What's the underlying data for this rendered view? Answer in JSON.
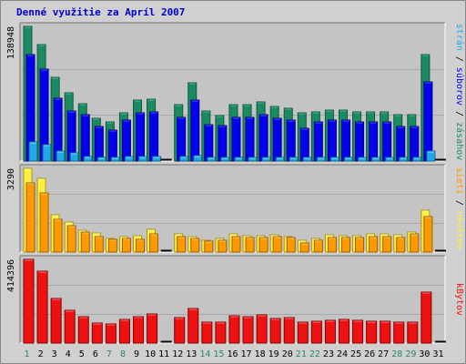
{
  "title": "Denné využitie za Apríl 2007",
  "colors": {
    "background": "#d0d0d0",
    "plot_bg": "#c4c4c4",
    "grid": "#a8a8a8",
    "title": "#0000cc",
    "hits": "#1a8a60",
    "files": "#0000ee",
    "pages": "#22a8e8",
    "visits": "#ffee44",
    "sites": "#ff9900",
    "kbytes": "#ee1111",
    "weekend_day": "#2a8a60",
    "weekday": "#000000"
  },
  "chart_data": [
    {
      "type": "bar",
      "panel": "requests",
      "x": [
        1,
        2,
        3,
        4,
        5,
        6,
        7,
        8,
        9,
        10,
        11,
        12,
        13,
        14,
        15,
        16,
        17,
        18,
        19,
        20,
        21,
        22,
        23,
        24,
        25,
        26,
        27,
        28,
        29,
        30,
        31
      ],
      "ymax_label": "138948",
      "ymax": 138948,
      "series": [
        {
          "name": "zásahov",
          "color": "#1a8a60",
          "values": [
            138948,
            120000,
            86000,
            70000,
            59000,
            44000,
            40000,
            50000,
            63000,
            64000,
            0,
            58000,
            81000,
            52000,
            47000,
            58000,
            58000,
            61000,
            56000,
            54000,
            50000,
            51000,
            53000,
            53000,
            51000,
            51000,
            51000,
            48000,
            48000,
            110000,
            0
          ]
        },
        {
          "name": "súborov",
          "color": "#0000ee",
          "values": [
            110000,
            95000,
            65000,
            52000,
            48000,
            36000,
            32000,
            42000,
            50000,
            51000,
            0,
            45000,
            63000,
            38000,
            37000,
            45000,
            45000,
            48000,
            44000,
            42000,
            34000,
            40000,
            42000,
            42000,
            40000,
            40000,
            40000,
            36000,
            36000,
            82000,
            0
          ]
        },
        {
          "name": "strán",
          "color": "#22a8e8",
          "values": [
            20000,
            17000,
            10000,
            8000,
            5000,
            4000,
            4000,
            5000,
            5000,
            5000,
            0,
            5000,
            6000,
            4000,
            4000,
            4000,
            4000,
            4000,
            4000,
            4000,
            4000,
            4000,
            4000,
            4000,
            4000,
            4000,
            4000,
            4000,
            4000,
            10000,
            0
          ]
        }
      ],
      "right_label": [
        "strán",
        "/",
        "súborov",
        "/",
        "zásahov"
      ]
    },
    {
      "type": "bar",
      "panel": "visits",
      "x": [
        1,
        2,
        3,
        4,
        5,
        6,
        7,
        8,
        9,
        10,
        11,
        12,
        13,
        14,
        15,
        16,
        17,
        18,
        19,
        20,
        21,
        22,
        23,
        24,
        25,
        26,
        27,
        28,
        29,
        30,
        31
      ],
      "ymax_label": "3290",
      "ymax": 3290,
      "series": [
        {
          "name": "návštev",
          "color": "#ffee44",
          "values": [
            3290,
            2880,
            1460,
            1170,
            850,
            760,
            520,
            600,
            640,
            880,
            0,
            700,
            610,
            470,
            520,
            700,
            650,
            650,
            670,
            620,
            450,
            520,
            690,
            640,
            640,
            700,
            700,
            680,
            780,
            1650,
            0
          ]
        },
        {
          "name": "sietí",
          "color": "#ff9900",
          "values": [
            2730,
            2310,
            1280,
            1020,
            770,
            620,
            500,
            530,
            510,
            720,
            0,
            620,
            540,
            420,
            460,
            610,
            590,
            580,
            600,
            560,
            370,
            460,
            590,
            570,
            570,
            600,
            600,
            590,
            700,
            1400,
            0
          ]
        }
      ],
      "right_label": [
        "sietí",
        "/",
        "návštev"
      ]
    },
    {
      "type": "bar",
      "panel": "kbytes",
      "x": [
        1,
        2,
        3,
        4,
        5,
        6,
        7,
        8,
        9,
        10,
        11,
        12,
        13,
        14,
        15,
        16,
        17,
        18,
        19,
        20,
        21,
        22,
        23,
        24,
        25,
        26,
        27,
        28,
        29,
        30,
        31
      ],
      "ymax_label": "414396",
      "ymax": 414396,
      "series": [
        {
          "name": "kBytov",
          "color": "#ee1111",
          "values": [
            414396,
            356000,
            220000,
            162000,
            130000,
            100000,
            94000,
            116000,
            132000,
            143000,
            0,
            124000,
            170000,
            103000,
            103000,
            135000,
            130000,
            140000,
            123000,
            127000,
            102000,
            108000,
            113000,
            117000,
            113000,
            108000,
            108000,
            104000,
            104000,
            251000,
            0
          ]
        }
      ],
      "right_label": [
        "kBytov"
      ]
    }
  ],
  "x_labels": [
    "1",
    "2",
    "3",
    "4",
    "5",
    "6",
    "7",
    "8",
    "9",
    "10",
    "11",
    "12",
    "13",
    "14",
    "15",
    "16",
    "17",
    "18",
    "19",
    "20",
    "21",
    "22",
    "23",
    "24",
    "25",
    "26",
    "27",
    "28",
    "29",
    "30",
    "31"
  ],
  "weekend_days": [
    1,
    7,
    8,
    14,
    15,
    21,
    22,
    28,
    29
  ]
}
